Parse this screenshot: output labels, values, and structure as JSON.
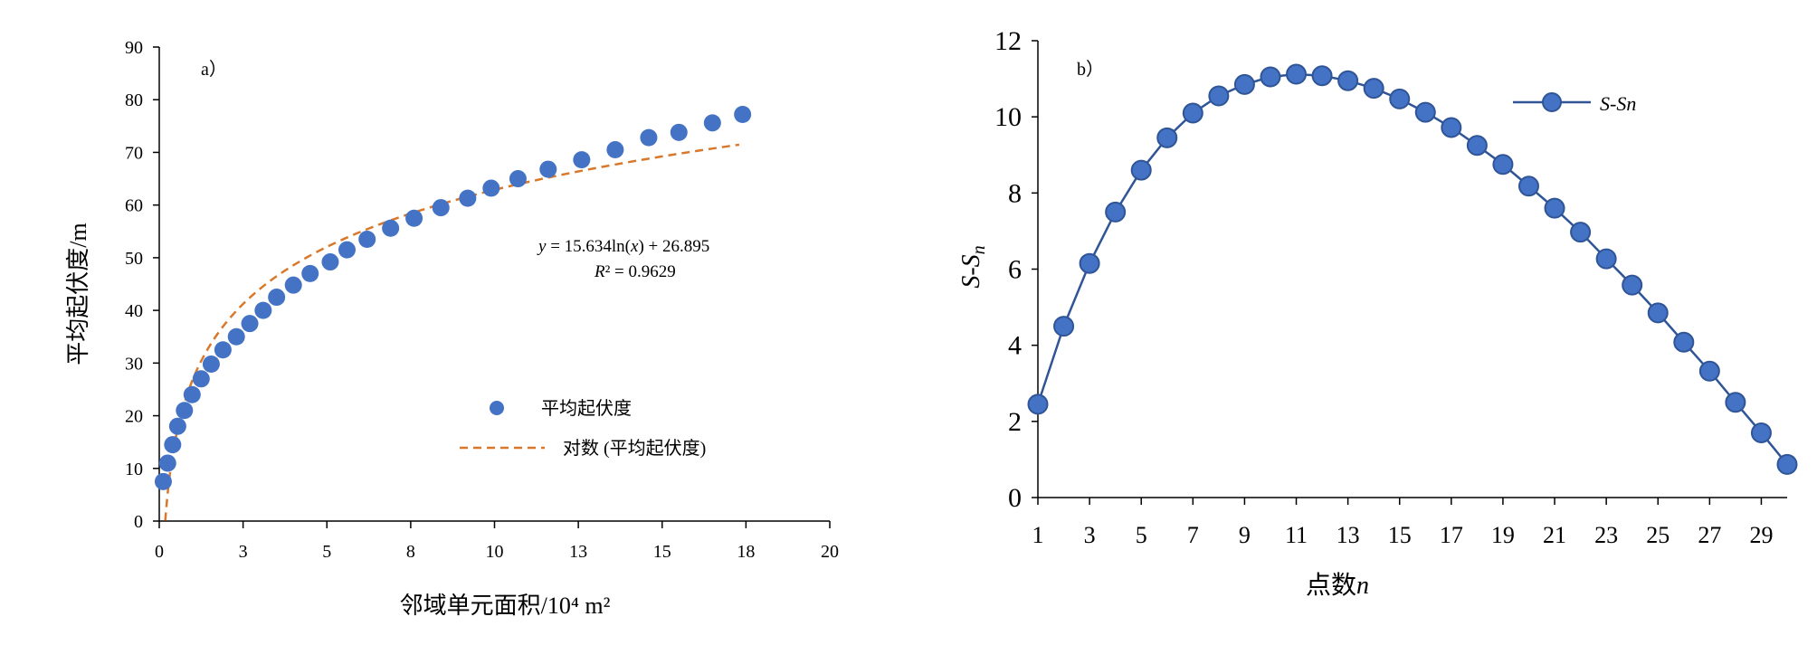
{
  "chart_data": [
    {
      "type": "scatter",
      "panel_label": "a）",
      "title": "",
      "xlabel": "邻域单元面积/10⁴ m²",
      "ylabel": "平均起伏度/m",
      "xlim": [
        0,
        20
      ],
      "ylim": [
        0,
        90
      ],
      "x_ticks": [
        {
          "value": 0,
          "label": "0"
        },
        {
          "value": 2.5,
          "label": "3"
        },
        {
          "value": 5,
          "label": "5"
        },
        {
          "value": 7.5,
          "label": "8"
        },
        {
          "value": 10,
          "label": "10"
        },
        {
          "value": 12.5,
          "label": "13"
        },
        {
          "value": 15,
          "label": "15"
        },
        {
          "value": 17.5,
          "label": "18"
        },
        {
          "value": 20,
          "label": "20"
        }
      ],
      "y_ticks": [
        0,
        10,
        20,
        30,
        40,
        50,
        60,
        70,
        80,
        90
      ],
      "grid": false,
      "legend_position": "center-right",
      "series": [
        {
          "name": "平均起伏度",
          "kind": "scatter",
          "color": "#4472C4",
          "points": [
            {
              "x": 0.12,
              "y": 7.5
            },
            {
              "x": 0.25,
              "y": 11
            },
            {
              "x": 0.4,
              "y": 14.5
            },
            {
              "x": 0.55,
              "y": 18
            },
            {
              "x": 0.75,
              "y": 21
            },
            {
              "x": 0.98,
              "y": 24
            },
            {
              "x": 1.25,
              "y": 27
            },
            {
              "x": 1.55,
              "y": 29.8
            },
            {
              "x": 1.9,
              "y": 32.5
            },
            {
              "x": 2.3,
              "y": 35
            },
            {
              "x": 2.7,
              "y": 37.5
            },
            {
              "x": 3.1,
              "y": 40
            },
            {
              "x": 3.5,
              "y": 42.5
            },
            {
              "x": 4.0,
              "y": 44.8
            },
            {
              "x": 4.5,
              "y": 47
            },
            {
              "x": 5.1,
              "y": 49.2
            },
            {
              "x": 5.6,
              "y": 51.5
            },
            {
              "x": 6.2,
              "y": 53.5
            },
            {
              "x": 6.9,
              "y": 55.6
            },
            {
              "x": 7.6,
              "y": 57.5
            },
            {
              "x": 8.4,
              "y": 59.5
            },
            {
              "x": 9.2,
              "y": 61.3
            },
            {
              "x": 9.9,
              "y": 63.2
            },
            {
              "x": 10.7,
              "y": 65
            },
            {
              "x": 11.6,
              "y": 66.8
            },
            {
              "x": 12.6,
              "y": 68.6
            },
            {
              "x": 13.6,
              "y": 70.5
            },
            {
              "x": 14.6,
              "y": 72.8
            },
            {
              "x": 15.5,
              "y": 73.8
            },
            {
              "x": 16.5,
              "y": 75.6
            },
            {
              "x": 17.4,
              "y": 77.2
            }
          ]
        },
        {
          "name": "对数 (平均起伏度)",
          "kind": "trendline",
          "color": "#D9782B",
          "dash": "dashed",
          "equation_a": 15.634,
          "equation_b": 26.895,
          "x_range": [
            0.18,
            17.3
          ]
        }
      ],
      "annotations": [
        {
          "text_y": "y",
          "text_rest": " = 15.634ln(",
          "text_x": "x",
          "text_end": ") + 26.895"
        },
        {
          "text_r": "R",
          "text_rest": "² = 0.9629"
        }
      ]
    },
    {
      "type": "line",
      "panel_label": "b）",
      "title": "",
      "xlabel_text": "点数",
      "xlabel_italic": "n",
      "ylabel_text": "S-S",
      "ylabel_sub": "n",
      "xlim": [
        1,
        30
      ],
      "ylim": [
        0,
        12
      ],
      "x_tick_labels": [
        "1",
        "3",
        "5",
        "7",
        "9",
        "11",
        "13",
        "15",
        "17",
        "19",
        "21",
        "23",
        "25",
        "27",
        "29"
      ],
      "y_ticks": [
        0,
        2,
        4,
        6,
        8,
        10,
        12
      ],
      "grid": false,
      "legend_position": "top-right",
      "series": [
        {
          "name": "S-Sn",
          "color": "#2F5597",
          "marker_fill": "#4472C4",
          "x": [
            1,
            2,
            3,
            4,
            5,
            6,
            7,
            8,
            9,
            10,
            11,
            12,
            13,
            14,
            15,
            16,
            17,
            18,
            19,
            20,
            21,
            22,
            23,
            24,
            25,
            26,
            27,
            28,
            29,
            30
          ],
          "values": [
            2.45,
            4.5,
            6.15,
            7.5,
            8.6,
            9.45,
            10.1,
            10.55,
            10.85,
            11.05,
            11.12,
            11.08,
            10.95,
            10.75,
            10.47,
            10.12,
            9.72,
            9.25,
            8.75,
            8.18,
            7.6,
            6.97,
            6.27,
            5.58,
            4.85,
            4.08,
            3.32,
            2.5,
            1.7,
            0.87
          ]
        }
      ]
    }
  ]
}
